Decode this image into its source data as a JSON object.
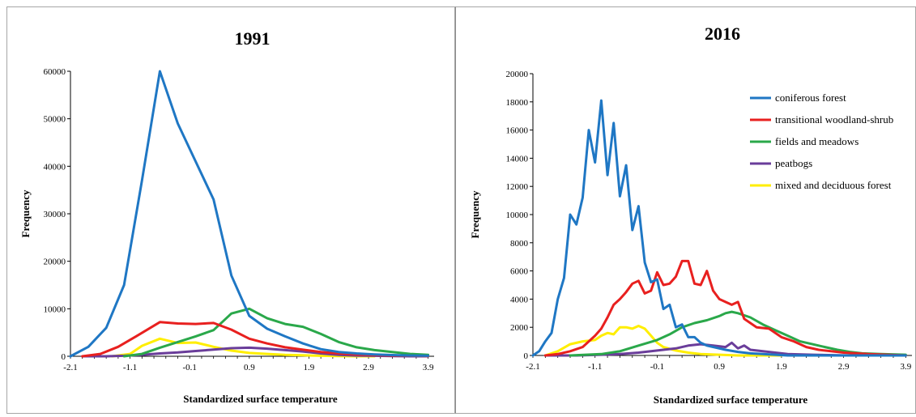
{
  "chart_data": [
    {
      "type": "line",
      "title": "1991",
      "xlabel": "Standardized surface temperature",
      "ylabel": "Frequency",
      "xlim": [
        -2.1,
        4.0
      ],
      "ylim": [
        0,
        60000
      ],
      "yticks": [
        0,
        10000,
        20000,
        30000,
        40000,
        50000,
        60000
      ],
      "xticks": [
        -2.1,
        -1.1,
        -0.1,
        0.9,
        1.9,
        2.9,
        3.9
      ],
      "xtick_labels": [
        "-2.1",
        "-1.1",
        "-0.1",
        "0.9",
        "1.9",
        "2.9",
        "3.9"
      ],
      "legend": false,
      "series": [
        {
          "label": "coniferous forest",
          "color": "#1f77c4",
          "x": [
            -2.1,
            -1.8,
            -1.5,
            -1.2,
            -0.9,
            -0.6,
            -0.3,
            0.0,
            0.3,
            0.6,
            0.9,
            1.2,
            1.5,
            1.8,
            2.1,
            2.4,
            2.7,
            3.0,
            3.3,
            3.6,
            3.9
          ],
          "y": [
            0,
            2000,
            6000,
            15000,
            37000,
            60000,
            49000,
            41000,
            33000,
            17000,
            8500,
            5800,
            4200,
            2700,
            1500,
            900,
            600,
            400,
            250,
            150,
            100
          ]
        },
        {
          "label": "transitional woodland-shrub",
          "color": "#e8201f",
          "x": [
            -1.9,
            -1.6,
            -1.3,
            -1.0,
            -0.6,
            -0.3,
            0.0,
            0.3,
            0.6,
            0.9,
            1.2,
            1.5,
            1.8,
            2.1,
            2.4,
            2.7,
            3.0,
            3.3,
            3.6,
            3.9
          ],
          "y": [
            0,
            500,
            2000,
            4200,
            7200,
            6900,
            6800,
            7000,
            5600,
            3700,
            2700,
            1900,
            1400,
            900,
            600,
            400,
            250,
            150,
            100,
            50
          ]
        },
        {
          "label": "fields and meadows",
          "color": "#2aa84a",
          "x": [
            -1.2,
            -0.9,
            -0.6,
            -0.3,
            0.0,
            0.3,
            0.6,
            0.9,
            1.2,
            1.5,
            1.8,
            2.1,
            2.4,
            2.7,
            3.0,
            3.3,
            3.6,
            3.9
          ],
          "y": [
            0,
            500,
            1800,
            3000,
            4200,
            5500,
            9000,
            10000,
            8000,
            6800,
            6200,
            4700,
            3000,
            1900,
            1300,
            900,
            500,
            300
          ]
        },
        {
          "label": "peatbogs",
          "color": "#6a3d9a",
          "x": [
            -1.9,
            -1.5,
            -1.2,
            -0.9,
            -0.6,
            -0.3,
            0.0,
            0.3,
            0.6,
            0.9,
            1.2,
            1.5,
            1.8,
            2.1,
            2.4,
            2.7,
            3.0,
            3.3,
            3.6,
            3.9
          ],
          "y": [
            0,
            0,
            100,
            300,
            600,
            800,
            1100,
            1400,
            1700,
            1800,
            1600,
            1300,
            1000,
            600,
            300,
            150,
            100,
            50,
            0,
            0
          ]
        },
        {
          "label": "mixed and deciduous forest",
          "color": "#ffee00",
          "x": [
            -1.4,
            -1.1,
            -0.9,
            -0.6,
            -0.3,
            0.0,
            0.3,
            0.6,
            0.9,
            1.2,
            1.5,
            1.8,
            2.1,
            2.4,
            2.7,
            3.0
          ],
          "y": [
            0,
            500,
            2200,
            3700,
            2800,
            2900,
            2000,
            1200,
            700,
            500,
            300,
            200,
            100,
            50,
            0,
            0
          ]
        }
      ]
    },
    {
      "type": "line",
      "title": "2016",
      "xlabel": "Standardized surface temperature",
      "ylabel": "Frequency",
      "xlim": [
        -2.1,
        4.0
      ],
      "ylim": [
        0,
        20000
      ],
      "yticks": [
        0,
        2000,
        4000,
        6000,
        8000,
        10000,
        12000,
        14000,
        16000,
        18000,
        20000
      ],
      "xticks": [
        -2.1,
        -1.1,
        -0.1,
        0.9,
        1.9,
        2.9,
        3.9
      ],
      "xtick_labels": [
        "-2.1",
        "-1.1",
        "-0.1",
        "0.9",
        "1.9",
        "2.9",
        "3.9"
      ],
      "legend": true,
      "legend_position": "top-right",
      "series": [
        {
          "label": "coniferous forest",
          "color": "#1f77c4",
          "x": [
            -2.1,
            -2.0,
            -1.9,
            -1.8,
            -1.7,
            -1.6,
            -1.5,
            -1.4,
            -1.3,
            -1.2,
            -1.1,
            -1.0,
            -0.9,
            -0.8,
            -0.7,
            -0.6,
            -0.5,
            -0.4,
            -0.3,
            -0.2,
            -0.1,
            0.0,
            0.1,
            0.2,
            0.3,
            0.4,
            0.5,
            0.6,
            0.7,
            0.8,
            0.9,
            1.0,
            1.2,
            1.4,
            1.6,
            1.8,
            2.0,
            2.4,
            3.0,
            3.9
          ],
          "y": [
            0,
            300,
            1000,
            1600,
            4000,
            5500,
            10000,
            9300,
            11200,
            16000,
            13700,
            18100,
            12800,
            16500,
            11300,
            13500,
            8900,
            10600,
            6600,
            5200,
            5400,
            3300,
            3600,
            2000,
            2200,
            1300,
            1300,
            900,
            700,
            600,
            500,
            400,
            250,
            150,
            100,
            50,
            0,
            0,
            0,
            0
          ]
        },
        {
          "label": "transitional woodland-shrub",
          "color": "#e8201f",
          "x": [
            -1.9,
            -1.7,
            -1.5,
            -1.3,
            -1.1,
            -1.0,
            -0.9,
            -0.8,
            -0.7,
            -0.6,
            -0.5,
            -0.4,
            -0.3,
            -0.2,
            -0.1,
            0.0,
            0.1,
            0.2,
            0.3,
            0.4,
            0.5,
            0.6,
            0.7,
            0.8,
            0.9,
            1.0,
            1.1,
            1.2,
            1.3,
            1.5,
            1.7,
            1.9,
            2.1,
            2.3,
            2.5,
            2.7,
            2.9,
            3.1,
            3.3,
            3.6,
            3.9
          ],
          "y": [
            0,
            100,
            300,
            600,
            1400,
            1900,
            2700,
            3600,
            4000,
            4500,
            5100,
            5300,
            4400,
            4600,
            5900,
            5000,
            5100,
            5600,
            6700,
            6700,
            5100,
            5000,
            6000,
            4600,
            4000,
            3800,
            3600,
            3800,
            2600,
            2000,
            1900,
            1300,
            1000,
            600,
            400,
            300,
            200,
            150,
            100,
            50,
            0
          ]
        },
        {
          "label": "fields and meadows",
          "color": "#2aa84a",
          "x": [
            -1.5,
            -1.0,
            -0.7,
            -0.4,
            -0.1,
            0.1,
            0.3,
            0.5,
            0.7,
            0.9,
            1.0,
            1.1,
            1.2,
            1.4,
            1.6,
            1.8,
            2.0,
            2.2,
            2.4,
            2.6,
            2.8,
            3.0,
            3.2,
            3.5,
            3.9
          ],
          "y": [
            0,
            100,
            300,
            700,
            1100,
            1500,
            2000,
            2300,
            2500,
            2800,
            3000,
            3100,
            3000,
            2700,
            2200,
            1800,
            1400,
            1000,
            800,
            600,
            400,
            250,
            150,
            100,
            50
          ]
        },
        {
          "label": "peatbogs",
          "color": "#6a3d9a",
          "x": [
            -1.9,
            -1.4,
            -1.0,
            -0.7,
            -0.4,
            -0.2,
            0.0,
            0.2,
            0.4,
            0.6,
            0.8,
            1.0,
            1.1,
            1.2,
            1.3,
            1.4,
            1.6,
            1.8,
            2.0,
            2.4,
            3.0,
            3.9
          ],
          "y": [
            0,
            0,
            50,
            100,
            200,
            300,
            400,
            500,
            700,
            800,
            700,
            600,
            900,
            500,
            700,
            400,
            300,
            200,
            100,
            50,
            0,
            0
          ]
        },
        {
          "label": "mixed and deciduous forest",
          "color": "#ffee00",
          "x": [
            -1.9,
            -1.7,
            -1.5,
            -1.3,
            -1.1,
            -1.0,
            -0.9,
            -0.8,
            -0.7,
            -0.6,
            -0.5,
            -0.4,
            -0.3,
            -0.2,
            -0.1,
            0.0,
            0.2,
            0.4,
            0.6,
            0.9,
            1.2,
            1.5,
            1.9
          ],
          "y": [
            0,
            300,
            800,
            1000,
            1100,
            1400,
            1600,
            1500,
            2000,
            2000,
            1900,
            2100,
            1900,
            1400,
            900,
            600,
            350,
            200,
            100,
            50,
            0,
            0,
            0
          ]
        }
      ]
    }
  ]
}
